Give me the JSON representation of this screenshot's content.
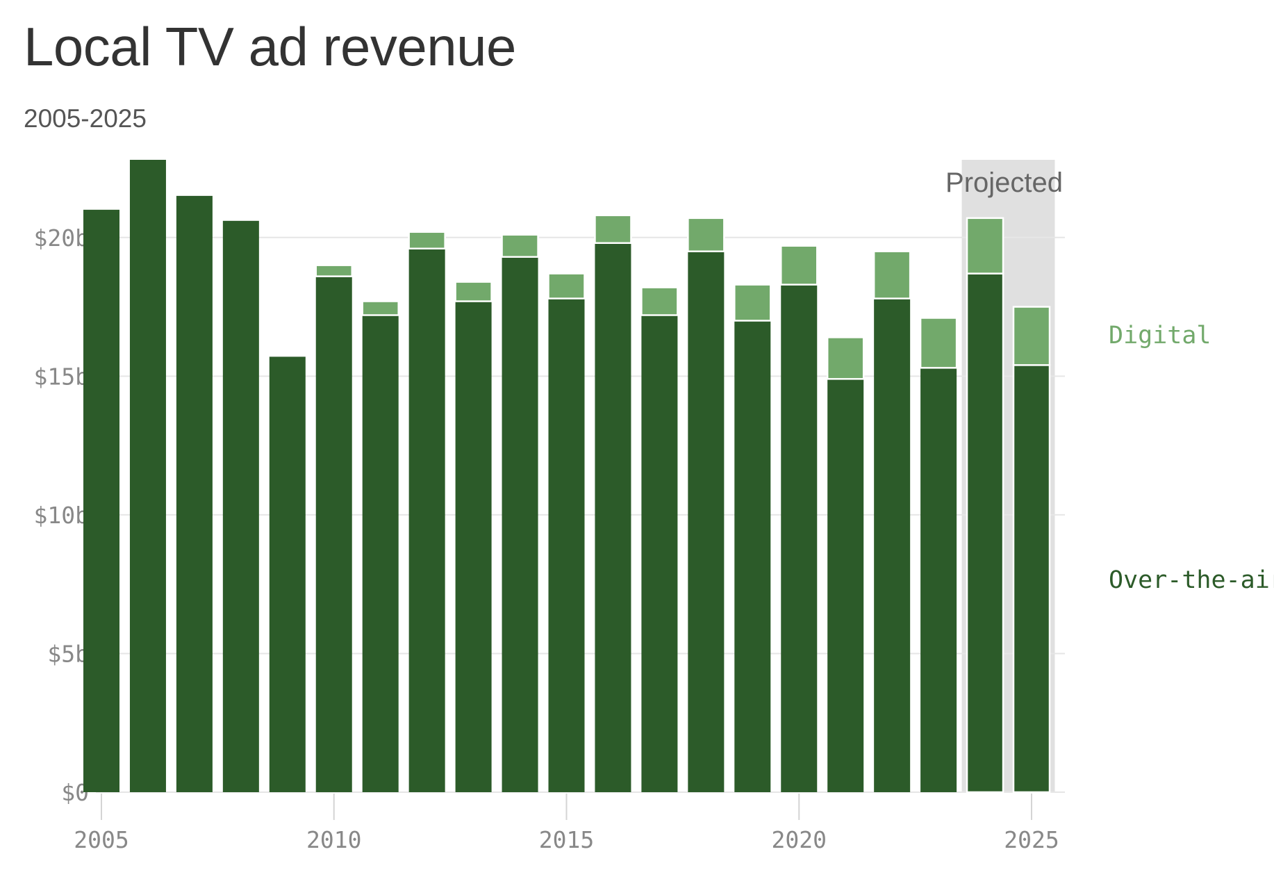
{
  "title": "Local TV ad revenue",
  "subtitle": "2005-2025",
  "chart_data": {
    "type": "bar",
    "stacked": true,
    "title": "Local TV ad revenue",
    "subtitle": "2005-2025",
    "categories": [
      2005,
      2006,
      2007,
      2008,
      2009,
      2010,
      2011,
      2012,
      2013,
      2014,
      2015,
      2016,
      2017,
      2018,
      2019,
      2020,
      2021,
      2022,
      2023,
      2024,
      2025
    ],
    "series": [
      {
        "name": "Over-the-air",
        "color": "#2c5b29",
        "values": [
          21.0,
          22.8,
          21.5,
          20.6,
          15.7,
          18.6,
          17.2,
          19.6,
          17.7,
          19.3,
          17.8,
          19.8,
          17.2,
          19.5,
          17.0,
          18.3,
          14.9,
          17.8,
          15.3,
          18.7,
          15.4
        ]
      },
      {
        "name": "Digital",
        "color": "#72a96b",
        "values": [
          0,
          0,
          0,
          0,
          0,
          0.4,
          0.5,
          0.6,
          0.7,
          0.8,
          0.9,
          1.0,
          1.0,
          1.2,
          1.3,
          1.4,
          1.5,
          1.7,
          1.8,
          2.0,
          2.1
        ]
      }
    ],
    "projected": {
      "label": "Projected",
      "from": 2024,
      "to": 2025,
      "shade_color": "#e0e0e0"
    },
    "ylim": [
      0,
      22.8
    ],
    "yticks": [
      0,
      5,
      10,
      15,
      20
    ],
    "ytick_labels": [
      "$0",
      "$5b",
      "$10b",
      "$15b",
      "$20b"
    ],
    "xticks": [
      2005,
      2010,
      2015,
      2020,
      2025
    ],
    "xtick_labels": [
      "2005",
      "2010",
      "2015",
      "2020",
      "2025"
    ],
    "xlabel": "",
    "ylabel": "",
    "grid": true,
    "legend": [
      {
        "label": "Digital",
        "color": "#72a96b",
        "placement": "right"
      },
      {
        "label": "Over-the-air",
        "color": "#2c5b29",
        "placement": "right"
      }
    ]
  }
}
